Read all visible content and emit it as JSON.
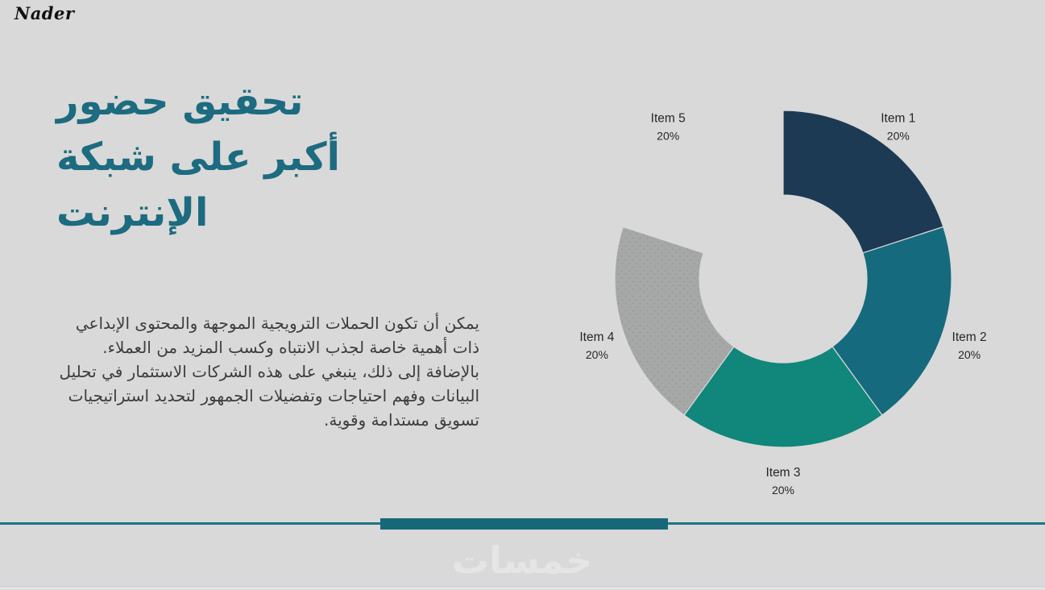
{
  "brand": {
    "logo_text": "Nader"
  },
  "slide": {
    "title_lines": [
      "تحقيق حضور",
      "أكبر على شبكة",
      "الإنترنت"
    ],
    "body_text": "يمكن أن تكون الحملات الترويجية الموجهة والمحتوى الإبداعي ذات أهمية خاصة لجذب الانتباه وكسب المزيد من العملاء. بالإضافة إلى ذلك، ينبغي على هذه الشركات الاستثمار في تحليل البيانات وفهم احتياجات وتفضيلات الجمهور لتحديد استراتيجيات تسويق مستدامة وقوية.",
    "watermark_text": "خمسات"
  },
  "chart_data": {
    "type": "pie",
    "subtype": "donut",
    "title": "",
    "categories": [
      "Item 1",
      "Item 2",
      "Item 3",
      "Item 4",
      "Item 5"
    ],
    "values": [
      20,
      20,
      20,
      20,
      20
    ],
    "value_labels": [
      "20%",
      "20%",
      "20%",
      "20%",
      "20%"
    ],
    "colors": [
      "#1d3a54",
      "#156a7d",
      "#11867a",
      "#a6a8a7",
      null
    ],
    "start_angle_deg": 0,
    "direction": "clockwise",
    "inner_radius_ratio": 0.5,
    "legend_position": "none",
    "notes": "Item 5 slice is rendered in the background color (invisible); Item 4 slice has a subtle dot texture"
  },
  "accents": {
    "background": "#d9d9d9",
    "title_teal": "#1d6b80",
    "divider_thin_line": "#1d7482",
    "divider_thick_bar": "#166879",
    "label_text": "#262626"
  }
}
